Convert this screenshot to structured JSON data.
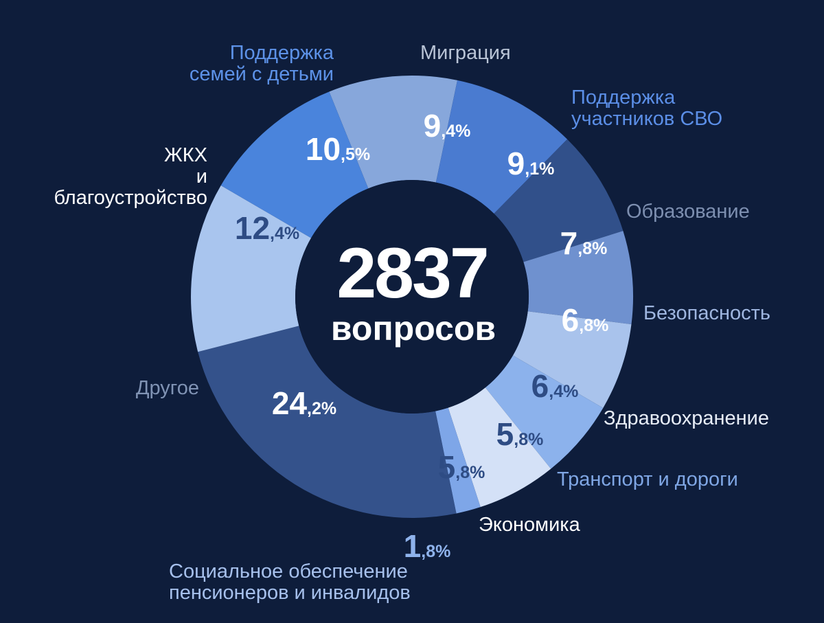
{
  "chart_data": {
    "type": "pie",
    "total": "2837",
    "total_caption": "вопросов",
    "legend_placement": "around",
    "segments": [
      {
        "name": "Миграция",
        "value": 9.4,
        "int": "9",
        "frac": ",4%",
        "fill": "#87a7db",
        "text": "#ffffff",
        "label_color": "#b9c4d6"
      },
      {
        "name": "Поддержка\nучастников СВО",
        "value": 9.1,
        "int": "9",
        "frac": ",1%",
        "fill": "#4a7bd0",
        "text": "#ffffff",
        "label_color": "#5b8ee6"
      },
      {
        "name": "Образование",
        "value": 7.8,
        "int": "7",
        "frac": ",8%",
        "fill": "#31508a",
        "text": "#ffffff",
        "label_color": "#7d8fb0"
      },
      {
        "name": "Безопасность",
        "value": 6.8,
        "int": "6",
        "frac": ",8%",
        "fill": "#6f91cf",
        "text": "#ffffff",
        "label_color": "#9fb6e0"
      },
      {
        "name": "Здравоохранение",
        "value": 6.4,
        "int": "6",
        "frac": ",4%",
        "fill": "#a9c3ec",
        "text": "#2e4c84",
        "label_color": "#e7edf7"
      },
      {
        "name": "Транспорт и дороги",
        "value": 5.8,
        "int": "5",
        "frac": ",8%",
        "fill": "#8cb2ec",
        "text": "#2e4c84",
        "label_color": "#7fa6e4"
      },
      {
        "name": "Экономика",
        "value": 5.8,
        "int": "5",
        "frac": ",8%",
        "fill": "#d4e1f7",
        "text": "#2e4c84",
        "label_color": "#ffffff"
      },
      {
        "name": "Социальное обеспечение\nпенсионеров и инвалидов",
        "value": 1.8,
        "int": "1",
        "frac": ",8%",
        "fill": "#7ea6e8",
        "text": "#8fb3ec",
        "label_color": "#a6c0ec"
      },
      {
        "name": "Другое",
        "value": 24.2,
        "int": "24",
        "frac": ",2%",
        "fill": "#34528b",
        "text": "#ffffff",
        "label_color": "#8093b4"
      },
      {
        "name": "ЖКХ\nи\nблагоустройство",
        "value": 12.4,
        "int": "12",
        "frac": ",4%",
        "fill": "#a9c5ee",
        "text": "#2e4c84",
        "label_color": "#ffffff"
      },
      {
        "name": "Поддержка\nсемей с детьми",
        "value": 10.5,
        "int": "10",
        "frac": ",5%",
        "fill": "#4a84dc",
        "text": "#ffffff",
        "label_color": "#5d92e8"
      }
    ]
  }
}
